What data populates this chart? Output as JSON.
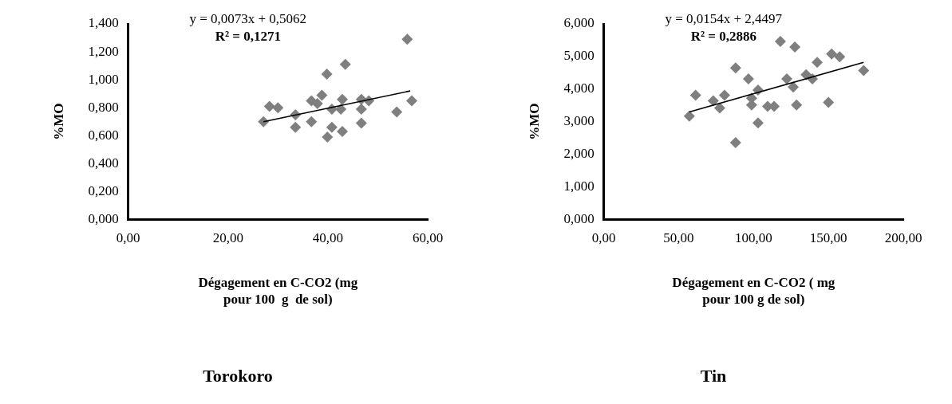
{
  "chart_data": [
    {
      "type": "scatter",
      "title": "Torokoro",
      "xlabel": "Dégagement en C-CO2 (mg\npour 100  g  de sol)",
      "ylabel": "%MO",
      "annotations": [
        "y = 0,0073x + 0,5062",
        "R² = 0,1271"
      ],
      "marker": "diamond",
      "grid": false,
      "legend": false,
      "xlim": [
        0,
        60
      ],
      "xticks": [
        {
          "value": 0,
          "label": "0,00"
        },
        {
          "value": 20,
          "label": "20,00"
        },
        {
          "value": 40,
          "label": "40,00"
        },
        {
          "value": 60,
          "label": "60,00"
        }
      ],
      "ylim": [
        0,
        1.4
      ],
      "yticks": [
        {
          "value": 0,
          "label": "0,000"
        },
        {
          "value": 0.2,
          "label": "0,200"
        },
        {
          "value": 0.4,
          "label": "0,400"
        },
        {
          "value": 0.6,
          "label": "0,600"
        },
        {
          "value": 0.8,
          "label": "0,800"
        },
        {
          "value": 1,
          "label": "1,000"
        },
        {
          "value": 1.2,
          "label": "1,200"
        },
        {
          "value": 1.4,
          "label": "1,400"
        }
      ],
      "series": [
        {
          "color": "#7f7f7f",
          "x": [
            55.9,
            43.5,
            39.8,
            28.3,
            30.0,
            27.1,
            33.5,
            33.5,
            36.7,
            36.7,
            38.8,
            37.9,
            40.8,
            42.9,
            42.6,
            40.8,
            39.9,
            42.9,
            46.7,
            48.2,
            46.7,
            46.7,
            53.8,
            56.8
          ],
          "values": [
            1.29,
            1.11,
            1.04,
            0.81,
            0.8,
            0.7,
            0.75,
            0.66,
            0.7,
            0.85,
            0.89,
            0.83,
            0.79,
            0.86,
            0.79,
            0.66,
            0.59,
            0.63,
            0.86,
            0.85,
            0.79,
            0.69,
            0.77,
            0.85
          ]
        },
        {
          "type": "line",
          "color": "#000000",
          "marker": "none",
          "x": [
            27.1,
            56.5
          ],
          "values": [
            0.7,
            0.92
          ]
        }
      ]
    },
    {
      "type": "scatter",
      "title": "Tin",
      "xlabel": "Dégagement en C-CO2 ( mg\npour 100 g de sol)",
      "ylabel": "%MO",
      "annotations": [
        "y = 0,0154x + 2,4497",
        "R² = 0,2886"
      ],
      "marker": "diamond",
      "grid": false,
      "legend": false,
      "xlim": [
        0,
        200
      ],
      "xticks": [
        {
          "value": 0,
          "label": "0,00"
        },
        {
          "value": 50,
          "label": "50,00"
        },
        {
          "value": 100,
          "label": "100,00"
        },
        {
          "value": 150,
          "label": "150,00"
        },
        {
          "value": 200,
          "label": "200,00"
        }
      ],
      "ylim": [
        0,
        6
      ],
      "yticks": [
        {
          "value": 0,
          "label": "0,000"
        },
        {
          "value": 1,
          "label": "1,000"
        },
        {
          "value": 2,
          "label": "2,000"
        },
        {
          "value": 3,
          "label": "3,000"
        },
        {
          "value": 4,
          "label": "4,000"
        },
        {
          "value": 5,
          "label": "5,000"
        },
        {
          "value": 6,
          "label": "6,000"
        }
      ],
      "series": [
        {
          "color": "#7f7f7f",
          "x": [
            117.9,
            127.6,
            88.0,
            96.6,
            142.5,
            152.1,
            157.5,
            173.5,
            122.2,
            135.1,
            139.3,
            126.5,
            103.0,
            61.3,
            80.6,
            73.1,
            77.4,
            98.7,
            98.7,
            109.4,
            113.7,
            128.7,
            150.0,
            57.1,
            103.0,
            88.0
          ],
          "values": [
            5.46,
            5.29,
            4.65,
            4.31,
            4.82,
            5.08,
            4.99,
            4.57,
            4.31,
            4.44,
            4.31,
            4.06,
            3.97,
            3.81,
            3.81,
            3.64,
            3.42,
            3.72,
            3.51,
            3.47,
            3.47,
            3.51,
            3.59,
            3.17,
            2.96,
            2.36
          ]
        },
        {
          "type": "line",
          "color": "#000000",
          "marker": "none",
          "x": [
            57.1,
            173.5
          ],
          "values": [
            3.3,
            4.82
          ]
        }
      ]
    }
  ]
}
